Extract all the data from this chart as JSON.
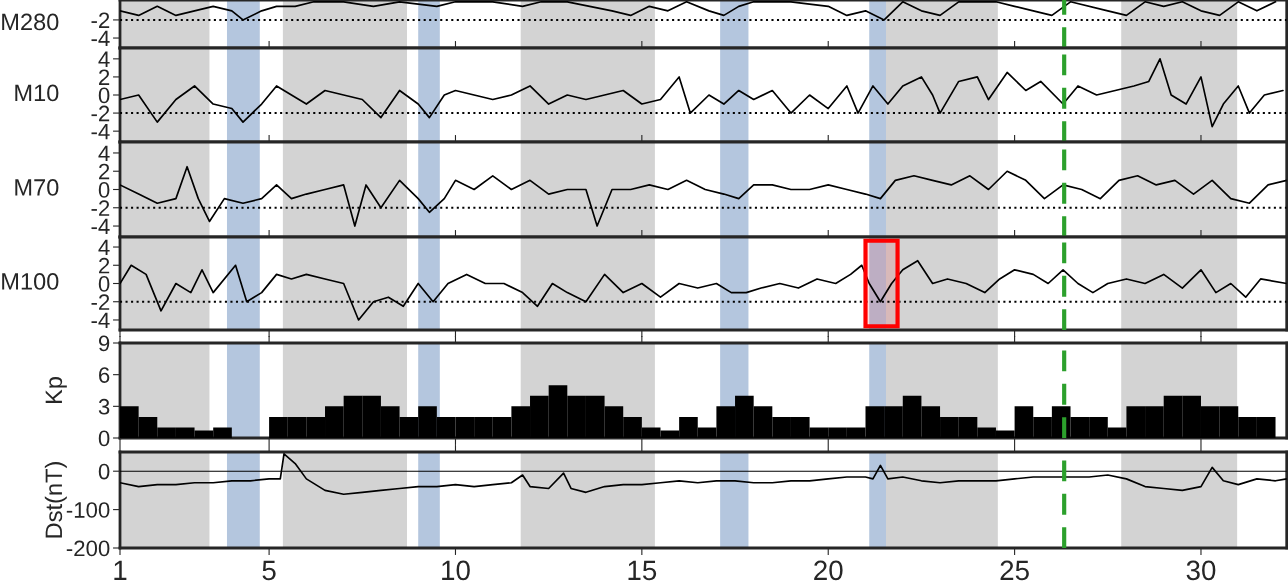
{
  "chart_data": [
    {
      "type": "line",
      "ylabel": "M280",
      "xlim": [
        1,
        32.3
      ],
      "xticks": [
        1,
        5,
        10,
        15,
        20,
        25,
        30
      ],
      "ylim": [
        -5.1,
        0.2
      ],
      "yticks": [
        -2,
        -4
      ],
      "tick_labels": "y",
      "color": "#000000",
      "x": [
        1,
        1.5,
        2,
        2.5,
        3,
        3.5,
        4,
        4.3,
        4.8,
        5.2,
        5.7,
        6.2,
        7,
        7.8,
        8.5,
        9.5,
        10,
        11,
        11.8,
        12.3,
        13,
        14.2,
        14.7,
        15.2,
        15.7,
        16.2,
        16.8,
        17.2,
        17.6,
        18,
        19,
        20,
        20.5,
        21,
        21.5,
        22,
        22.5,
        23,
        23.5,
        24.5,
        25,
        25.5,
        26,
        26.5,
        27.5,
        28,
        28.5,
        29,
        29.5,
        30,
        30.5,
        31,
        31.5,
        32
      ],
      "values": [
        -1,
        -1.5,
        -0.5,
        -1.5,
        -1,
        -0.5,
        -1,
        -2,
        -1,
        -0.5,
        -0.5,
        0,
        0,
        -0.5,
        0,
        -0.5,
        0,
        0,
        -0.5,
        0,
        0,
        -1,
        -1.5,
        -0.5,
        -1,
        0,
        -1,
        -1.5,
        -0.5,
        0,
        0,
        -0.5,
        -1.5,
        -1,
        -2,
        0,
        -1,
        -1.5,
        0,
        0,
        -0.5,
        -1,
        -1.5,
        0,
        -1,
        -1.5,
        0,
        -0.5,
        0,
        -1,
        -1.5,
        0,
        -1,
        0
      ],
      "ref_lines": [
        {
          "axis": "y",
          "value": -2,
          "color": "#000000",
          "line_style": "dotted"
        },
        {
          "axis": "x",
          "value": 26.33,
          "color": "#2ca02c",
          "line_style": "dashed"
        }
      ],
      "bands": [
        {
          "axis": "x",
          "from": 1,
          "to": 3.4,
          "color": "#d3d3d3"
        },
        {
          "axis": "x",
          "from": 5.37,
          "to": 8.7,
          "color": "#d3d3d3"
        },
        {
          "axis": "x",
          "from": 11.75,
          "to": 15.35,
          "color": "#d3d3d3"
        },
        {
          "axis": "x",
          "from": 21.55,
          "to": 24.55,
          "color": "#d3d3d3"
        },
        {
          "axis": "x",
          "from": 27.86,
          "to": 30.97,
          "color": "#d3d3d3"
        },
        {
          "axis": "x",
          "from": 3.87,
          "to": 4.75,
          "color": "#b4c6de"
        },
        {
          "axis": "x",
          "from": 9.0,
          "to": 9.58,
          "color": "#b4c6de"
        },
        {
          "axis": "x",
          "from": 17.1,
          "to": 17.86,
          "color": "#b4c6de"
        },
        {
          "axis": "x",
          "from": 21.1,
          "to": 21.55,
          "color": "#b4c6de"
        }
      ]
    },
    {
      "type": "line",
      "ylabel": "M10",
      "xlim": [
        1,
        32.3
      ],
      "xticks": [
        1,
        5,
        10,
        15,
        20,
        25,
        30
      ],
      "ylim": [
        -5.2,
        5.2
      ],
      "yticks": [
        -4,
        -2,
        0,
        2,
        4
      ],
      "tick_labels": "y",
      "color": "#000000",
      "x": [
        1,
        1.5,
        2,
        2.5,
        3,
        3.5,
        4,
        4.3,
        4.8,
        5.2,
        5.6,
        6,
        6.5,
        7,
        7.5,
        8,
        8.5,
        9,
        9.3,
        9.7,
        10,
        10.5,
        11,
        11.5,
        12,
        12.5,
        13,
        13.5,
        14,
        14.5,
        15,
        15.5,
        16,
        16.3,
        16.8,
        17.2,
        17.6,
        18,
        18.5,
        19,
        19.5,
        20,
        20.5,
        20.8,
        21.2,
        21.6,
        22,
        22.5,
        22.8,
        23,
        23.5,
        24,
        24.3,
        24.8,
        25.3,
        25.7,
        26.3,
        26.7,
        27.2,
        27.7,
        28.2,
        28.6,
        28.9,
        29.2,
        29.6,
        30,
        30.3,
        30.6,
        31,
        31.3,
        31.7,
        32.2
      ],
      "values": [
        -0.5,
        0,
        -3,
        -0.5,
        1,
        -1,
        -1.5,
        -3,
        -1,
        1,
        0,
        -1,
        0.5,
        0,
        -0.5,
        -2.5,
        0.5,
        -1,
        -2.5,
        0,
        0.5,
        0,
        -0.5,
        0,
        1,
        -1,
        0,
        -0.5,
        0,
        0.5,
        -1,
        -0.5,
        2,
        -2,
        0,
        -1,
        0.5,
        -0.5,
        0.5,
        -2,
        0,
        -1.5,
        1,
        -2,
        1,
        -1,
        1,
        2,
        0,
        -2,
        1.5,
        2,
        -0.5,
        2.5,
        0.5,
        1.5,
        -1,
        1,
        0,
        0.5,
        1,
        1.5,
        4,
        0,
        -1,
        2,
        -3.5,
        -1,
        1,
        -2,
        0,
        0.5
      ],
      "ref_lines": [
        {
          "axis": "y",
          "value": -2,
          "color": "#000000",
          "line_style": "dotted"
        },
        {
          "axis": "x",
          "value": 26.33,
          "color": "#2ca02c",
          "line_style": "dashed"
        }
      ],
      "bands": [
        {
          "axis": "x",
          "from": 1,
          "to": 3.4,
          "color": "#d3d3d3"
        },
        {
          "axis": "x",
          "from": 5.37,
          "to": 8.7,
          "color": "#d3d3d3"
        },
        {
          "axis": "x",
          "from": 11.75,
          "to": 15.35,
          "color": "#d3d3d3"
        },
        {
          "axis": "x",
          "from": 21.55,
          "to": 24.55,
          "color": "#d3d3d3"
        },
        {
          "axis": "x",
          "from": 27.86,
          "to": 30.97,
          "color": "#d3d3d3"
        },
        {
          "axis": "x",
          "from": 3.87,
          "to": 4.75,
          "color": "#b4c6de"
        },
        {
          "axis": "x",
          "from": 9.0,
          "to": 9.58,
          "color": "#b4c6de"
        },
        {
          "axis": "x",
          "from": 17.1,
          "to": 17.86,
          "color": "#b4c6de"
        },
        {
          "axis": "x",
          "from": 21.1,
          "to": 21.55,
          "color": "#b4c6de"
        }
      ]
    },
    {
      "type": "line",
      "ylabel": "M70",
      "xlim": [
        1,
        32.3
      ],
      "xticks": [
        1,
        5,
        10,
        15,
        20,
        25,
        30
      ],
      "ylim": [
        -5.2,
        5.2
      ],
      "yticks": [
        -4,
        -2,
        0,
        2,
        4
      ],
      "tick_labels": "y",
      "color": "#000000",
      "x": [
        1,
        1.5,
        2,
        2.5,
        2.8,
        3.1,
        3.4,
        3.8,
        4.3,
        4.8,
        5.2,
        5.6,
        6,
        6.5,
        7,
        7.3,
        7.6,
        8,
        8.5,
        9,
        9.3,
        9.7,
        10,
        10.5,
        11,
        11.5,
        12,
        12.5,
        13,
        13.5,
        13.8,
        14.2,
        14.7,
        15.2,
        15.7,
        16.2,
        16.7,
        17.2,
        17.6,
        18,
        18.5,
        19,
        19.5,
        20,
        20.5,
        21,
        21.4,
        21.8,
        22.3,
        22.8,
        23.3,
        23.8,
        24.3,
        24.8,
        25.3,
        25.8,
        26.3,
        26.8,
        27.3,
        27.8,
        28.3,
        28.8,
        29.3,
        29.8,
        30.3,
        30.8,
        31.3,
        31.8,
        32.3
      ],
      "values": [
        0.5,
        -0.5,
        -1.5,
        -1,
        2.5,
        -1,
        -3.5,
        -1,
        -1.5,
        -1,
        0.5,
        -1,
        -0.5,
        0,
        0.5,
        -4,
        0.5,
        -2,
        1,
        -1,
        -2.5,
        -1,
        1,
        0,
        1.5,
        0,
        1,
        -0.5,
        0,
        0,
        -4,
        0,
        0,
        0.5,
        0,
        1,
        0,
        -0.5,
        -1,
        0.5,
        0.5,
        0,
        0,
        0.5,
        0,
        -0.5,
        -1,
        1,
        1.5,
        1,
        0.5,
        1.5,
        0,
        2,
        1,
        -1,
        0.5,
        0,
        -1,
        1,
        1.5,
        0.5,
        1,
        -0.5,
        1,
        -1,
        -1.5,
        0.5,
        1
      ],
      "ref_lines": [
        {
          "axis": "y",
          "value": -2,
          "color": "#000000",
          "line_style": "dotted"
        },
        {
          "axis": "x",
          "value": 26.33,
          "color": "#2ca02c",
          "line_style": "dashed"
        }
      ],
      "bands": [
        {
          "axis": "x",
          "from": 1,
          "to": 3.4,
          "color": "#d3d3d3"
        },
        {
          "axis": "x",
          "from": 5.37,
          "to": 8.7,
          "color": "#d3d3d3"
        },
        {
          "axis": "x",
          "from": 11.75,
          "to": 15.35,
          "color": "#d3d3d3"
        },
        {
          "axis": "x",
          "from": 21.55,
          "to": 24.55,
          "color": "#d3d3d3"
        },
        {
          "axis": "x",
          "from": 27.86,
          "to": 30.97,
          "color": "#d3d3d3"
        },
        {
          "axis": "x",
          "from": 3.87,
          "to": 4.75,
          "color": "#b4c6de"
        },
        {
          "axis": "x",
          "from": 9.0,
          "to": 9.58,
          "color": "#b4c6de"
        },
        {
          "axis": "x",
          "from": 17.1,
          "to": 17.86,
          "color": "#b4c6de"
        },
        {
          "axis": "x",
          "from": 21.1,
          "to": 21.55,
          "color": "#b4c6de"
        }
      ]
    },
    {
      "type": "line",
      "ylabel": "M100",
      "xlim": [
        1,
        32.3
      ],
      "xticks": [
        1,
        5,
        10,
        15,
        20,
        25,
        30
      ],
      "ylim": [
        -5.1,
        5.1
      ],
      "yticks": [
        -4,
        -2,
        0,
        2,
        4
      ],
      "tick_labels": "y",
      "color": "#000000",
      "x": [
        1,
        1.3,
        1.7,
        2.1,
        2.5,
        2.9,
        3.2,
        3.5,
        4.1,
        4.4,
        4.8,
        5.2,
        5.6,
        6,
        6.5,
        7,
        7.4,
        7.8,
        8.2,
        8.6,
        9,
        9.4,
        9.8,
        10.3,
        10.8,
        11.3,
        11.8,
        12.2,
        12.6,
        13,
        13.5,
        14,
        14.5,
        15,
        15.5,
        16,
        16.5,
        17,
        17.4,
        17.8,
        18.2,
        18.7,
        19.2,
        19.7,
        20.2,
        20.6,
        20.9,
        21.1,
        21.4,
        21.7,
        22,
        22.4,
        22.8,
        23.2,
        23.7,
        24.2,
        24.6,
        25,
        25.5,
        25.9,
        26.3,
        26.7,
        27.1,
        27.5,
        28,
        28.5,
        29,
        29.5,
        30,
        30.4,
        30.8,
        31.2,
        31.6,
        32.3
      ],
      "values": [
        0,
        2,
        1,
        -3,
        0,
        -1,
        1.5,
        -1,
        2,
        -2,
        -1,
        1,
        0.5,
        1,
        0.5,
        0,
        -4,
        -2,
        -1.5,
        -2.5,
        0,
        -2,
        0,
        1,
        0,
        0,
        -1,
        -2.5,
        0,
        -1,
        -2,
        1,
        -1,
        0,
        -1.5,
        0,
        -0.5,
        0,
        -1,
        -1,
        -0.5,
        0,
        -0.5,
        0.5,
        0,
        1,
        2,
        0,
        -2,
        0,
        1.5,
        2.5,
        0,
        0.5,
        0,
        -1,
        0.5,
        1.5,
        1,
        0,
        1.5,
        0,
        -1,
        0,
        0.5,
        0,
        1,
        -0.5,
        1.5,
        -1,
        0,
        -1.5,
        0.5,
        0
      ],
      "ref_lines": [
        {
          "axis": "y",
          "value": -2,
          "color": "#000000",
          "line_style": "dotted"
        },
        {
          "axis": "x",
          "value": 26.33,
          "color": "#2ca02c",
          "line_style": "dashed"
        }
      ],
      "bands": [
        {
          "axis": "x",
          "from": 1,
          "to": 3.4,
          "color": "#d3d3d3"
        },
        {
          "axis": "x",
          "from": 5.37,
          "to": 8.7,
          "color": "#d3d3d3"
        },
        {
          "axis": "x",
          "from": 11.75,
          "to": 15.35,
          "color": "#d3d3d3"
        },
        {
          "axis": "x",
          "from": 21.55,
          "to": 24.55,
          "color": "#d3d3d3"
        },
        {
          "axis": "x",
          "from": 27.86,
          "to": 30.97,
          "color": "#d3d3d3"
        },
        {
          "axis": "x",
          "from": 3.87,
          "to": 4.75,
          "color": "#b4c6de"
        },
        {
          "axis": "x",
          "from": 9.0,
          "to": 9.58,
          "color": "#b4c6de"
        },
        {
          "axis": "x",
          "from": 17.1,
          "to": 17.86,
          "color": "#b4c6de"
        },
        {
          "axis": "x",
          "from": 21.1,
          "to": 21.55,
          "color": "#b4c6de"
        },
        {
          "axis": "x",
          "from": 21.0,
          "to": 21.86,
          "color": "#ff0000",
          "label": null
        }
      ]
    },
    {
      "type": "bar",
      "ylabel": "Kp",
      "xlim": [
        1,
        32.3
      ],
      "xticks": [
        1,
        5,
        10,
        15,
        20,
        25,
        30
      ],
      "ylim": [
        0,
        9
      ],
      "yticks": [
        0,
        3,
        6,
        9
      ],
      "tick_labels": "y",
      "color": "#000000",
      "x": [
        1.25,
        1.75,
        2.25,
        2.75,
        3.25,
        3.75,
        4.25,
        4.75,
        5.25,
        5.75,
        6.25,
        6.75,
        7.25,
        7.75,
        8.25,
        8.75,
        9.25,
        9.75,
        10.25,
        10.75,
        11.25,
        11.75,
        12.25,
        12.75,
        13.25,
        13.75,
        14.25,
        14.75,
        15.25,
        15.75,
        16.25,
        16.75,
        17.25,
        17.75,
        18.25,
        18.75,
        19.25,
        19.75,
        20.25,
        20.75,
        21.25,
        21.75,
        22.25,
        22.75,
        23.25,
        23.75,
        24.25,
        24.75,
        25.25,
        25.75,
        26.25,
        26.75,
        27.25,
        27.75,
        28.25,
        28.75,
        29.25,
        29.75,
        30.25,
        30.75,
        31.25,
        31.75
      ],
      "values": [
        3,
        2,
        1,
        1,
        0.7,
        1,
        0,
        0,
        2,
        2,
        2,
        3,
        4,
        4,
        3,
        2,
        3,
        2,
        2,
        2,
        2,
        3,
        4,
        5,
        4,
        4,
        3,
        2,
        1,
        0.7,
        2,
        1,
        3,
        4,
        3,
        2,
        2,
        1,
        1,
        1,
        3,
        3,
        4,
        3,
        2,
        2,
        1,
        0.7,
        3,
        2,
        3,
        2,
        2,
        1,
        3,
        3,
        4,
        4,
        3,
        3,
        2,
        2
      ],
      "ref_lines": [
        {
          "axis": "x",
          "value": 26.33,
          "color": "#2ca02c",
          "line_style": "dashed"
        }
      ],
      "bands": [
        {
          "axis": "x",
          "from": 1,
          "to": 3.4,
          "color": "#d3d3d3"
        },
        {
          "axis": "x",
          "from": 5.37,
          "to": 8.7,
          "color": "#d3d3d3"
        },
        {
          "axis": "x",
          "from": 11.75,
          "to": 15.35,
          "color": "#d3d3d3"
        },
        {
          "axis": "x",
          "from": 21.55,
          "to": 24.55,
          "color": "#d3d3d3"
        },
        {
          "axis": "x",
          "from": 27.86,
          "to": 30.97,
          "color": "#d3d3d3"
        },
        {
          "axis": "x",
          "from": 3.87,
          "to": 4.75,
          "color": "#b4c6de"
        },
        {
          "axis": "x",
          "from": 9.0,
          "to": 9.58,
          "color": "#b4c6de"
        },
        {
          "axis": "x",
          "from": 17.1,
          "to": 17.86,
          "color": "#b4c6de"
        },
        {
          "axis": "x",
          "from": 21.1,
          "to": 21.55,
          "color": "#b4c6de"
        }
      ]
    },
    {
      "type": "line",
      "ylabel": "Dst(nT)",
      "xlim": [
        1,
        32.3
      ],
      "xticks": [
        1,
        5,
        10,
        15,
        20,
        25,
        30
      ],
      "ylim": [
        -200,
        50
      ],
      "yticks": [
        -200,
        -100,
        0
      ],
      "color": "#000000",
      "x": [
        1,
        1.5,
        2,
        2.5,
        3,
        3.5,
        4,
        4.5,
        5,
        5.3,
        5.4,
        5.7,
        6,
        6.5,
        7,
        7.5,
        8,
        8.5,
        9,
        9.5,
        10,
        10.5,
        11,
        11.5,
        11.8,
        12,
        12.5,
        12.9,
        13.1,
        13.5,
        14,
        14.5,
        15,
        15.5,
        16,
        16.5,
        17,
        17.5,
        18,
        18.5,
        19,
        19.5,
        20,
        20.5,
        21,
        21.2,
        21.4,
        21.6,
        22,
        22.5,
        23,
        23.5,
        24,
        24.5,
        25,
        25.5,
        26,
        26.5,
        27,
        27.5,
        28,
        28.5,
        29,
        29.5,
        30,
        30.3,
        30.6,
        31,
        31.5,
        32,
        32.3
      ],
      "values": [
        -30,
        -40,
        -35,
        -35,
        -30,
        -30,
        -25,
        -25,
        -20,
        -20,
        45,
        20,
        -20,
        -50,
        -60,
        -55,
        -50,
        -45,
        -40,
        -40,
        -35,
        -40,
        -35,
        -30,
        -10,
        -40,
        -45,
        -5,
        -45,
        -55,
        -40,
        -35,
        -35,
        -30,
        -25,
        -30,
        -25,
        -25,
        -30,
        -30,
        -25,
        -25,
        -20,
        -15,
        -15,
        -20,
        15,
        -20,
        -15,
        -25,
        -30,
        -25,
        -25,
        -25,
        -20,
        -15,
        -15,
        -15,
        -15,
        -10,
        -20,
        -40,
        -45,
        -50,
        -40,
        10,
        -25,
        -35,
        -20,
        -25,
        -20
      ],
      "ref_lines": [
        {
          "axis": "y",
          "value": 0,
          "color": "#000000",
          "line_style": "solid"
        },
        {
          "axis": "x",
          "value": 26.33,
          "color": "#2ca02c",
          "line_style": "dashed"
        }
      ],
      "bands": [
        {
          "axis": "x",
          "from": 1,
          "to": 3.4,
          "color": "#d3d3d3"
        },
        {
          "axis": "x",
          "from": 5.37,
          "to": 8.7,
          "color": "#d3d3d3"
        },
        {
          "axis": "x",
          "from": 11.75,
          "to": 15.35,
          "color": "#d3d3d3"
        },
        {
          "axis": "x",
          "from": 21.55,
          "to": 24.55,
          "color": "#d3d3d3"
        },
        {
          "axis": "x",
          "from": 27.86,
          "to": 30.97,
          "color": "#d3d3d3"
        },
        {
          "axis": "x",
          "from": 3.87,
          "to": 4.75,
          "color": "#b4c6de"
        },
        {
          "axis": "x",
          "from": 9.0,
          "to": 9.58,
          "color": "#b4c6de"
        },
        {
          "axis": "x",
          "from": 17.1,
          "to": 17.86,
          "color": "#b4c6de"
        },
        {
          "axis": "x",
          "from": 21.1,
          "to": 21.55,
          "color": "#b4c6de"
        }
      ]
    }
  ]
}
